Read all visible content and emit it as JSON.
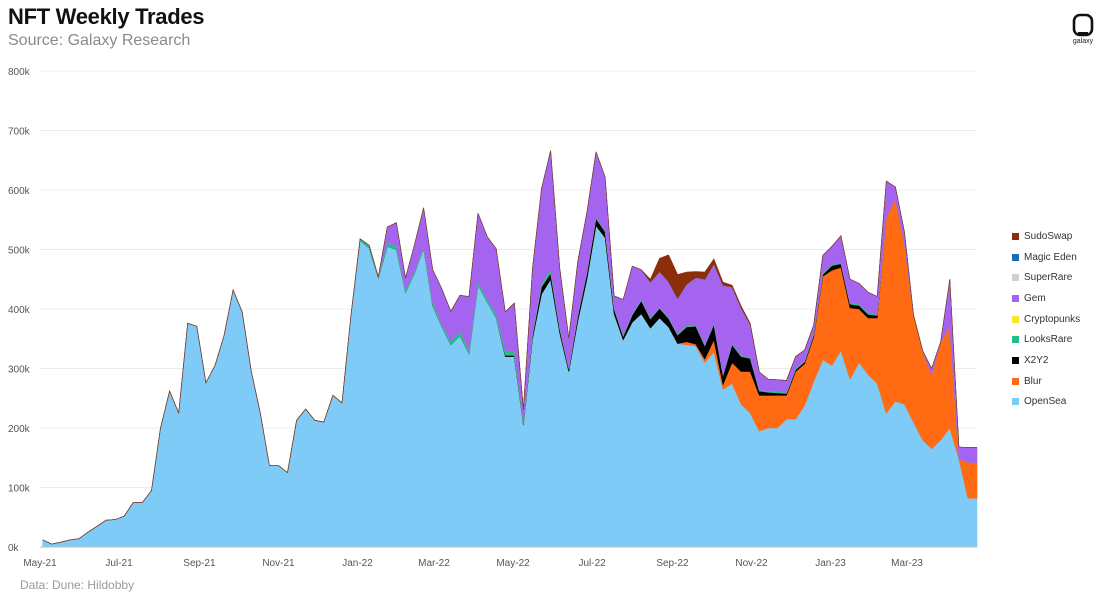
{
  "header": {
    "title": "NFT Weekly Trades",
    "subtitle": "Source: Galaxy Research"
  },
  "footer": {
    "source": "Data: Dune: Hildobby"
  },
  "logo": {
    "text": "galaxy",
    "icon": "galaxy-logo-icon"
  },
  "chart_data": {
    "type": "area",
    "stacked": true,
    "ylim": [
      0,
      800000
    ],
    "y_ticks": [
      0,
      100000,
      200000,
      300000,
      400000,
      500000,
      600000,
      700000,
      800000
    ],
    "y_tick_labels": [
      "0k",
      "100k",
      "200k",
      "300k",
      "400k",
      "500k",
      "600k",
      "700k",
      "800k"
    ],
    "x_tick_labels": [
      "May-21",
      "Jul-21",
      "Sep-21",
      "Nov-21",
      "Jan-22",
      "Mar-22",
      "May-22",
      "Jul-22",
      "Sep-22",
      "Nov-22",
      "Jan-23",
      "Mar-23"
    ],
    "grid": true,
    "legend_position": "right",
    "x": [
      "2021-05-03",
      "2021-05-10",
      "2021-05-17",
      "2021-05-24",
      "2021-05-31",
      "2021-06-07",
      "2021-06-14",
      "2021-06-21",
      "2021-06-28",
      "2021-07-05",
      "2021-07-12",
      "2021-07-19",
      "2021-07-26",
      "2021-08-02",
      "2021-08-09",
      "2021-08-16",
      "2021-08-23",
      "2021-08-30",
      "2021-09-06",
      "2021-09-13",
      "2021-09-20",
      "2021-09-27",
      "2021-10-04",
      "2021-10-11",
      "2021-10-18",
      "2021-10-25",
      "2021-11-01",
      "2021-11-08",
      "2021-11-15",
      "2021-11-22",
      "2021-11-29",
      "2021-12-06",
      "2021-12-13",
      "2021-12-20",
      "2021-12-27",
      "2022-01-03",
      "2022-01-10",
      "2022-01-17",
      "2022-01-24",
      "2022-01-31",
      "2022-02-07",
      "2022-02-14",
      "2022-02-21",
      "2022-02-28",
      "2022-03-07",
      "2022-03-14",
      "2022-03-21",
      "2022-03-28",
      "2022-04-04",
      "2022-04-11",
      "2022-04-18",
      "2022-04-25",
      "2022-05-02",
      "2022-05-09",
      "2022-05-16",
      "2022-05-23",
      "2022-05-30",
      "2022-06-06",
      "2022-06-13",
      "2022-06-20",
      "2022-06-27",
      "2022-07-04",
      "2022-07-11",
      "2022-07-18",
      "2022-07-25",
      "2022-08-01",
      "2022-08-08",
      "2022-08-15",
      "2022-08-22",
      "2022-08-29",
      "2022-09-05",
      "2022-09-12",
      "2022-09-19",
      "2022-09-26",
      "2022-10-03",
      "2022-10-10",
      "2022-10-17",
      "2022-10-24",
      "2022-10-31",
      "2022-11-07",
      "2022-11-14",
      "2022-11-21",
      "2022-11-28",
      "2022-12-05",
      "2022-12-12",
      "2022-12-19",
      "2022-12-26",
      "2023-01-02",
      "2023-01-09",
      "2023-01-16",
      "2023-01-23",
      "2023-01-30",
      "2023-02-06",
      "2023-02-13",
      "2023-02-20",
      "2023-02-27",
      "2023-03-06",
      "2023-03-13",
      "2023-03-20",
      "2023-03-27",
      "2023-04-03",
      "2023-04-10",
      "2023-04-17",
      "2023-04-24"
    ],
    "series": [
      {
        "name": "OpenSea",
        "color": "#7fcbf7",
        "values": [
          12000,
          5000,
          8000,
          12000,
          14000,
          25000,
          35000,
          45000,
          46000,
          52000,
          75000,
          75000,
          95000,
          200000,
          262000,
          225000,
          376000,
          371000,
          276000,
          305000,
          355000,
          432000,
          395000,
          296000,
          225000,
          137000,
          137000,
          125000,
          213000,
          232000,
          213000,
          210000,
          255000,
          242000,
          390000,
          516000,
          502000,
          452000,
          505000,
          500000,
          428000,
          460000,
          502000,
          405000,
          370000,
          340000,
          355000,
          325000,
          440000,
          412000,
          385000,
          320000,
          320000,
          205000,
          350000,
          425000,
          450000,
          360000,
          295000,
          380000,
          450000,
          540000,
          520000,
          392000,
          348000,
          378000,
          392000,
          368000,
          385000,
          370000,
          342000,
          340000,
          338000,
          310000,
          328000,
          265000,
          275000,
          240000,
          225000,
          195000,
          200000,
          200000,
          215000,
          215000,
          238000,
          278000,
          315000,
          305000,
          330000,
          282000,
          310000,
          290000,
          275000,
          225000,
          245000,
          240000,
          210000,
          180000,
          165000,
          180000,
          200000,
          148000,
          82000,
          82000
        ]
      },
      {
        "name": "Blur",
        "color": "#ff6a13",
        "values": [
          0,
          0,
          0,
          0,
          0,
          0,
          0,
          0,
          0,
          0,
          0,
          0,
          0,
          0,
          0,
          0,
          0,
          0,
          0,
          0,
          0,
          0,
          0,
          0,
          0,
          0,
          0,
          0,
          0,
          0,
          0,
          0,
          0,
          0,
          0,
          0,
          0,
          0,
          0,
          0,
          0,
          0,
          0,
          0,
          0,
          0,
          0,
          0,
          0,
          0,
          0,
          0,
          0,
          0,
          0,
          0,
          0,
          0,
          0,
          0,
          0,
          0,
          0,
          0,
          0,
          0,
          0,
          0,
          0,
          0,
          0,
          5000,
          3000,
          6000,
          20000,
          8000,
          35000,
          55000,
          70000,
          60000,
          55000,
          55000,
          40000,
          80000,
          70000,
          75000,
          140000,
          160000,
          140000,
          120000,
          90000,
          95000,
          110000,
          330000,
          340000,
          270000,
          180000,
          150000,
          125000,
          165000,
          170000,
          0,
          60000,
          60000
        ]
      },
      {
        "name": "X2Y2",
        "color": "#000000",
        "values": [
          0,
          0,
          0,
          0,
          0,
          0,
          0,
          0,
          0,
          0,
          0,
          0,
          0,
          0,
          0,
          0,
          0,
          0,
          0,
          0,
          0,
          0,
          0,
          0,
          0,
          0,
          0,
          0,
          0,
          0,
          0,
          0,
          0,
          0,
          0,
          0,
          0,
          0,
          0,
          0,
          0,
          0,
          0,
          0,
          0,
          0,
          0,
          0,
          0,
          0,
          0,
          2000,
          2000,
          1000,
          5000,
          12000,
          10000,
          6000,
          4000,
          8000,
          10000,
          12000,
          10000,
          8000,
          6000,
          12000,
          22000,
          15000,
          16000,
          14000,
          14000,
          25000,
          30000,
          22000,
          26000,
          15000,
          30000,
          25000,
          22000,
          7000,
          5000,
          4000,
          3000,
          3000,
          3000,
          3000,
          3000,
          8000,
          6000,
          6000,
          6000,
          6000,
          4000,
          0,
          0,
          0,
          0,
          0,
          0,
          0,
          0,
          0,
          0,
          0
        ]
      },
      {
        "name": "LooksRare",
        "color": "#1fbf86",
        "values": [
          0,
          0,
          0,
          0,
          0,
          0,
          0,
          0,
          0,
          0,
          0,
          0,
          0,
          0,
          0,
          0,
          0,
          0,
          0,
          0,
          0,
          0,
          0,
          0,
          0,
          0,
          0,
          0,
          0,
          0,
          0,
          0,
          0,
          0,
          0,
          2000,
          5000,
          2000,
          8000,
          5000,
          4000,
          3000,
          3000,
          6000,
          4000,
          6000,
          8000,
          6000,
          6000,
          5000,
          6000,
          8000,
          8000,
          5000,
          3000,
          5000,
          6000,
          3000,
          2000,
          2000,
          2000,
          2000,
          2000,
          2000,
          2000,
          2000,
          2000,
          2000,
          2000,
          2000,
          2000,
          2000,
          2000,
          2000,
          2000,
          2000,
          2000,
          2000,
          2000,
          2000,
          2000,
          2000,
          2000,
          2000,
          2000,
          2000,
          2000,
          2000,
          2000,
          2000,
          2000,
          2000,
          2000,
          0,
          0,
          0,
          0,
          0,
          0,
          0,
          0,
          0,
          0,
          0
        ]
      },
      {
        "name": "Cryptopunks",
        "color": "#ffe22b",
        "values": [
          0,
          0,
          0,
          0,
          0,
          0,
          0,
          0,
          0,
          0,
          0,
          0,
          0,
          0,
          0,
          0,
          0,
          0,
          0,
          0,
          0,
          0,
          0,
          0,
          0,
          0,
          0,
          0,
          0,
          0,
          0,
          0,
          0,
          0,
          0,
          0,
          0,
          0,
          0,
          0,
          0,
          0,
          0,
          0,
          0,
          0,
          0,
          0,
          0,
          0,
          0,
          0,
          0,
          0,
          0,
          0,
          0,
          0,
          0,
          0,
          0,
          0,
          0,
          0,
          0,
          0,
          0,
          0,
          0,
          0,
          0,
          0,
          0,
          0,
          0,
          0,
          0,
          0,
          0,
          0,
          0,
          0,
          0,
          0,
          0,
          0,
          0,
          0,
          0,
          0,
          0,
          0,
          0,
          0,
          0,
          0,
          0,
          0,
          0,
          0,
          0,
          0,
          0,
          0
        ]
      },
      {
        "name": "Gem",
        "color": "#a464f0",
        "values": [
          0,
          0,
          0,
          0,
          0,
          0,
          0,
          0,
          0,
          0,
          0,
          0,
          0,
          0,
          0,
          0,
          0,
          0,
          0,
          0,
          0,
          0,
          0,
          0,
          0,
          0,
          0,
          0,
          0,
          0,
          0,
          0,
          0,
          0,
          0,
          0,
          0,
          0,
          25000,
          40000,
          20000,
          45000,
          65000,
          55000,
          60000,
          50000,
          60000,
          90000,
          115000,
          105000,
          110000,
          65000,
          80000,
          20000,
          110000,
          160000,
          200000,
          100000,
          50000,
          90000,
          100000,
          110000,
          90000,
          20000,
          60000,
          80000,
          50000,
          60000,
          60000,
          60000,
          60000,
          70000,
          80000,
          110000,
          100000,
          150000,
          95000,
          80000,
          55000,
          30000,
          20000,
          20000,
          20000,
          20000,
          18000,
          15000,
          30000,
          30000,
          45000,
          40000,
          35000,
          35000,
          30000,
          60000,
          20000,
          20000,
          0,
          0,
          10000,
          0,
          80000,
          20000,
          25000,
          25000
        ]
      },
      {
        "name": "SuperRare",
        "color": "#d0d0d0",
        "values": [
          0,
          0,
          0,
          0,
          0,
          0,
          0,
          0,
          0,
          0,
          0,
          0,
          0,
          0,
          0,
          0,
          0,
          0,
          0,
          0,
          0,
          0,
          0,
          0,
          0,
          0,
          0,
          0,
          0,
          0,
          0,
          0,
          0,
          0,
          0,
          0,
          0,
          0,
          0,
          0,
          0,
          0,
          0,
          0,
          0,
          0,
          0,
          0,
          0,
          0,
          0,
          0,
          0,
          0,
          0,
          0,
          0,
          0,
          0,
          0,
          0,
          0,
          0,
          0,
          0,
          0,
          0,
          0,
          0,
          0,
          0,
          0,
          0,
          0,
          0,
          0,
          0,
          0,
          0,
          0,
          0,
          0,
          0,
          0,
          0,
          0,
          0,
          0,
          0,
          0,
          0,
          0,
          0,
          0,
          0,
          0,
          0,
          0,
          0,
          0,
          0,
          0,
          0,
          0
        ]
      },
      {
        "name": "Magic Eden",
        "color": "#1a6db5",
        "values": [
          0,
          0,
          0,
          0,
          0,
          0,
          0,
          0,
          0,
          0,
          0,
          0,
          0,
          0,
          0,
          0,
          0,
          0,
          0,
          0,
          0,
          0,
          0,
          0,
          0,
          0,
          0,
          0,
          0,
          0,
          0,
          0,
          0,
          0,
          0,
          0,
          0,
          0,
          0,
          0,
          0,
          0,
          0,
          0,
          0,
          0,
          0,
          0,
          0,
          0,
          0,
          0,
          0,
          0,
          0,
          0,
          0,
          0,
          0,
          0,
          0,
          0,
          0,
          0,
          0,
          0,
          0,
          0,
          0,
          0,
          0,
          0,
          0,
          0,
          0,
          0,
          0,
          0,
          0,
          0,
          0,
          0,
          0,
          0,
          0,
          0,
          0,
          0,
          0,
          0,
          0,
          0,
          0,
          0,
          0,
          0,
          0,
          0,
          0,
          0,
          0,
          0,
          0,
          0
        ]
      },
      {
        "name": "SudoSwap",
        "color": "#8b2e0a",
        "values": [
          0,
          0,
          0,
          0,
          0,
          0,
          0,
          0,
          0,
          0,
          0,
          0,
          0,
          0,
          0,
          0,
          0,
          0,
          0,
          0,
          0,
          0,
          0,
          0,
          0,
          0,
          0,
          0,
          0,
          0,
          0,
          0,
          0,
          0,
          0,
          0,
          0,
          0,
          0,
          0,
          0,
          0,
          0,
          0,
          0,
          0,
          0,
          0,
          0,
          0,
          0,
          0,
          0,
          0,
          0,
          0,
          0,
          0,
          0,
          0,
          0,
          0,
          0,
          0,
          0,
          0,
          0,
          5000,
          22000,
          45000,
          40000,
          20000,
          10000,
          12000,
          8000,
          5000,
          3000,
          3000,
          2000,
          0,
          0,
          0,
          0,
          0,
          0,
          0,
          0,
          0,
          0,
          0,
          0,
          0,
          0,
          0,
          0,
          0,
          0,
          0,
          0,
          0,
          0,
          0,
          0,
          0
        ]
      }
    ]
  }
}
